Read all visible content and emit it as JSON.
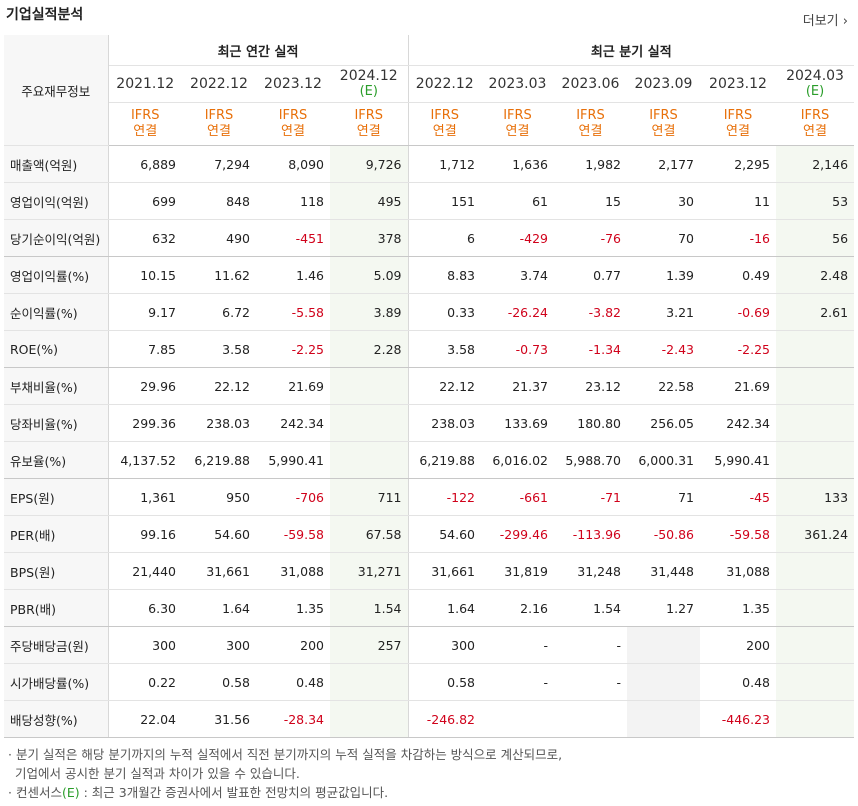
{
  "title": "기업실적분석",
  "more_label": "더보기",
  "more_icon": "chevron-right",
  "header": {
    "corner": "주요재무정보",
    "annual_group": "최근 연간 실적",
    "quarter_group": "최근 분기 실적",
    "annual_periods": [
      "2021.12",
      "2022.12",
      "2023.12",
      "2024.12"
    ],
    "quarter_periods": [
      "2022.12",
      "2023.03",
      "2023.06",
      "2023.09",
      "2023.12",
      "2024.03"
    ],
    "estimate_mark": "(E)",
    "ifrs_top": "IFRS",
    "ifrs_bottom": "연결"
  },
  "rows": [
    {
      "label": "매출액(억원)",
      "values": [
        "6,889",
        "7,294",
        "8,090",
        "9,726",
        "1,712",
        "1,636",
        "1,982",
        "2,177",
        "2,295",
        "2,146"
      ]
    },
    {
      "label": "영업이익(억원)",
      "values": [
        "699",
        "848",
        "118",
        "495",
        "151",
        "61",
        "15",
        "30",
        "11",
        "53"
      ]
    },
    {
      "label": "당기순이익(억원)",
      "values": [
        "632",
        "490",
        "-451",
        "378",
        "6",
        "-429",
        "-76",
        "70",
        "-16",
        "56"
      ]
    },
    {
      "label": "영업이익률(%)",
      "values": [
        "10.15",
        "11.62",
        "1.46",
        "5.09",
        "8.83",
        "3.74",
        "0.77",
        "1.39",
        "0.49",
        "2.48"
      ]
    },
    {
      "label": "순이익률(%)",
      "values": [
        "9.17",
        "6.72",
        "-5.58",
        "3.89",
        "0.33",
        "-26.24",
        "-3.82",
        "3.21",
        "-0.69",
        "2.61"
      ]
    },
    {
      "label": "ROE(%)",
      "values": [
        "7.85",
        "3.58",
        "-2.25",
        "2.28",
        "3.58",
        "-0.73",
        "-1.34",
        "-2.43",
        "-2.25",
        ""
      ]
    },
    {
      "label": "부채비율(%)",
      "values": [
        "29.96",
        "22.12",
        "21.69",
        "",
        "22.12",
        "21.37",
        "23.12",
        "22.58",
        "21.69",
        ""
      ]
    },
    {
      "label": "당좌비율(%)",
      "values": [
        "299.36",
        "238.03",
        "242.34",
        "",
        "238.03",
        "133.69",
        "180.80",
        "256.05",
        "242.34",
        ""
      ]
    },
    {
      "label": "유보율(%)",
      "values": [
        "4,137.52",
        "6,219.88",
        "5,990.41",
        "",
        "6,219.88",
        "6,016.02",
        "5,988.70",
        "6,000.31",
        "5,990.41",
        ""
      ]
    },
    {
      "label": "EPS(원)",
      "values": [
        "1,361",
        "950",
        "-706",
        "711",
        "-122",
        "-661",
        "-71",
        "71",
        "-45",
        "133"
      ]
    },
    {
      "label": "PER(배)",
      "values": [
        "99.16",
        "54.60",
        "-59.58",
        "67.58",
        "54.60",
        "-299.46",
        "-113.96",
        "-50.86",
        "-59.58",
        "361.24"
      ]
    },
    {
      "label": "BPS(원)",
      "values": [
        "21,440",
        "31,661",
        "31,088",
        "31,271",
        "31,661",
        "31,819",
        "31,248",
        "31,448",
        "31,088",
        ""
      ]
    },
    {
      "label": "PBR(배)",
      "values": [
        "6.30",
        "1.64",
        "1.35",
        "1.54",
        "1.64",
        "2.16",
        "1.54",
        "1.27",
        "1.35",
        ""
      ]
    },
    {
      "label": "주당배당금(원)",
      "values": [
        "300",
        "300",
        "200",
        "257",
        "300",
        "-",
        "-",
        "",
        "200",
        ""
      ]
    },
    {
      "label": "시가배당률(%)",
      "values": [
        "0.22",
        "0.58",
        "0.48",
        "",
        "0.58",
        "-",
        "-",
        "",
        "0.48",
        ""
      ]
    },
    {
      "label": "배당성향(%)",
      "values": [
        "22.04",
        "31.56",
        "-28.34",
        "",
        "-246.82",
        "",
        "",
        "",
        "-446.23",
        ""
      ]
    }
  ],
  "notes": {
    "line1": "분기 실적은 해당 분기까지의 누적 실적에서 직전 분기까지의 누적 실적을 차감하는 방식으로 계산되므로,",
    "line2": "기업에서 공시한 분기 실적과 차이가 있을 수 있습니다.",
    "line3_prefix": "컨센서스",
    "line3_mark": "(E)",
    "line3_suffix": " : 최근 3개월간 증권사에서 발표한 전망치의 평균값입니다."
  },
  "colors": {
    "negative": "#d0021b",
    "ifrs": "#e8700a",
    "estimate": "#2a9d2a"
  }
}
